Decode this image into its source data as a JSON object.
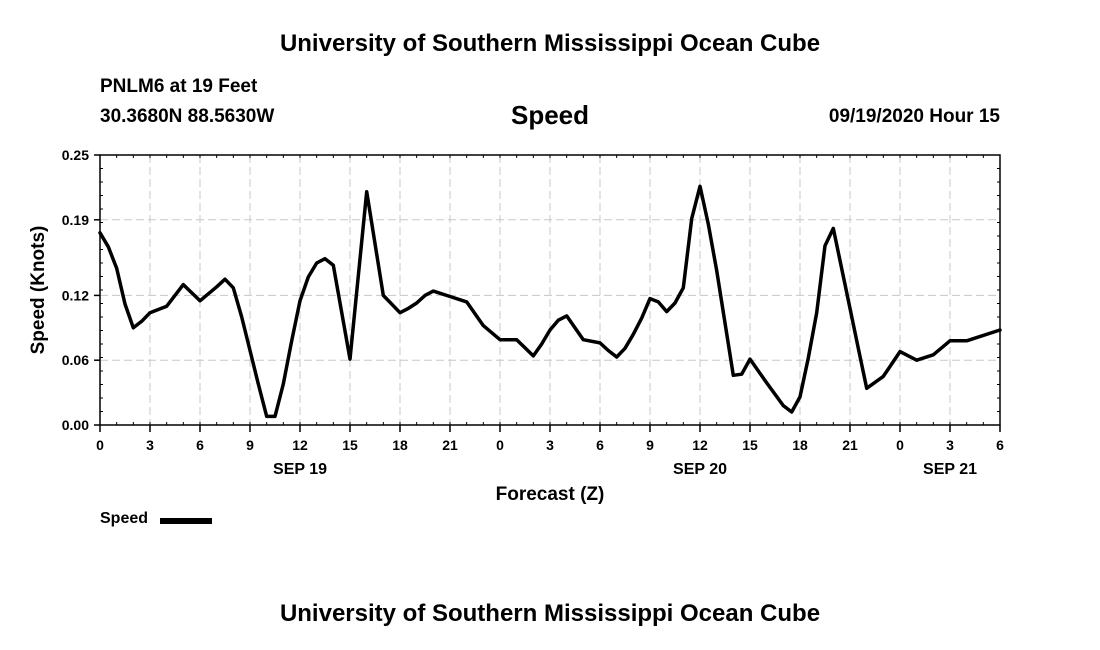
{
  "header": {
    "org_title": "University of Southern Mississippi Ocean Cube",
    "station": "PNLM6 at 19 Feet",
    "coordinates": "30.3680N 88.5630W",
    "issued": "09/19/2020 Hour 15",
    "footer_title": "University of Southern Mississippi Ocean Cube"
  },
  "chart_data": {
    "type": "line",
    "title": "Speed",
    "xlabel": "Forecast (Z)",
    "ylabel": "Speed (Knots)",
    "ylim": [
      0,
      0.25
    ],
    "xlim": [
      0,
      54
    ],
    "grid": true,
    "y_ticks": [
      0,
      0.06,
      0.12,
      0.19,
      0.25
    ],
    "y_tick_labels": [
      "0.00",
      "0.06",
      "0.12",
      "0.19",
      "0.25"
    ],
    "x_ticks": [
      0,
      3,
      6,
      9,
      12,
      15,
      18,
      21,
      24,
      27,
      30,
      33,
      36,
      39,
      42,
      45,
      48,
      51,
      54
    ],
    "x_tick_labels": [
      "0",
      "3",
      "6",
      "9",
      "12",
      "15",
      "18",
      "21",
      "0",
      "3",
      "6",
      "9",
      "12",
      "15",
      "18",
      "21",
      "0",
      "3",
      "6"
    ],
    "date_labels": [
      {
        "x": 12,
        "label": "SEP 19"
      },
      {
        "x": 36,
        "label": "SEP 20"
      },
      {
        "x": 51,
        "label": "SEP 21"
      }
    ],
    "legend": [
      {
        "name": "Speed",
        "color": "#000000"
      }
    ],
    "legend_position": "bottom-left",
    "series": [
      {
        "name": "Speed",
        "color": "#000000",
        "x": [
          0,
          0.5,
          1,
          1.5,
          2,
          2.5,
          3,
          4,
          5,
          6,
          7,
          7.5,
          8,
          8.5,
          9,
          9.5,
          10,
          10.5,
          11,
          11.5,
          12,
          12.5,
          13,
          13.5,
          14,
          15,
          16,
          17,
          18,
          18.5,
          19,
          19.5,
          20,
          21,
          22,
          23,
          24,
          25,
          26,
          26.5,
          27,
          27.5,
          28,
          29,
          30,
          30.5,
          31,
          31.5,
          32,
          32.5,
          33,
          33.5,
          34,
          34.5,
          35,
          35.5,
          36,
          36.5,
          37,
          38,
          38.5,
          39,
          40,
          41,
          41.5,
          42,
          42.5,
          43,
          43.5,
          44,
          45,
          45.5,
          46,
          47,
          48,
          49,
          50,
          51,
          52,
          54
        ],
        "values": [
          0.178,
          0.165,
          0.145,
          0.112,
          0.09,
          0.096,
          0.104,
          0.11,
          0.13,
          0.115,
          0.128,
          0.135,
          0.127,
          0.1,
          0.069,
          0.038,
          0.008,
          0.008,
          0.038,
          0.078,
          0.115,
          0.137,
          0.15,
          0.154,
          0.148,
          0.061,
          0.216,
          0.12,
          0.104,
          0.108,
          0.113,
          0.12,
          0.124,
          0.119,
          0.114,
          0.092,
          0.079,
          0.079,
          0.064,
          0.075,
          0.088,
          0.097,
          0.101,
          0.079,
          0.076,
          0.069,
          0.063,
          0.071,
          0.084,
          0.099,
          0.117,
          0.114,
          0.105,
          0.113,
          0.127,
          0.191,
          0.221,
          0.186,
          0.143,
          0.046,
          0.047,
          0.061,
          0.039,
          0.018,
          0.012,
          0.026,
          0.062,
          0.104,
          0.166,
          0.182,
          0.108,
          0.071,
          0.034,
          0.045,
          0.068,
          0.06,
          0.065,
          0.078,
          0.078,
          0.088
        ]
      }
    ]
  }
}
